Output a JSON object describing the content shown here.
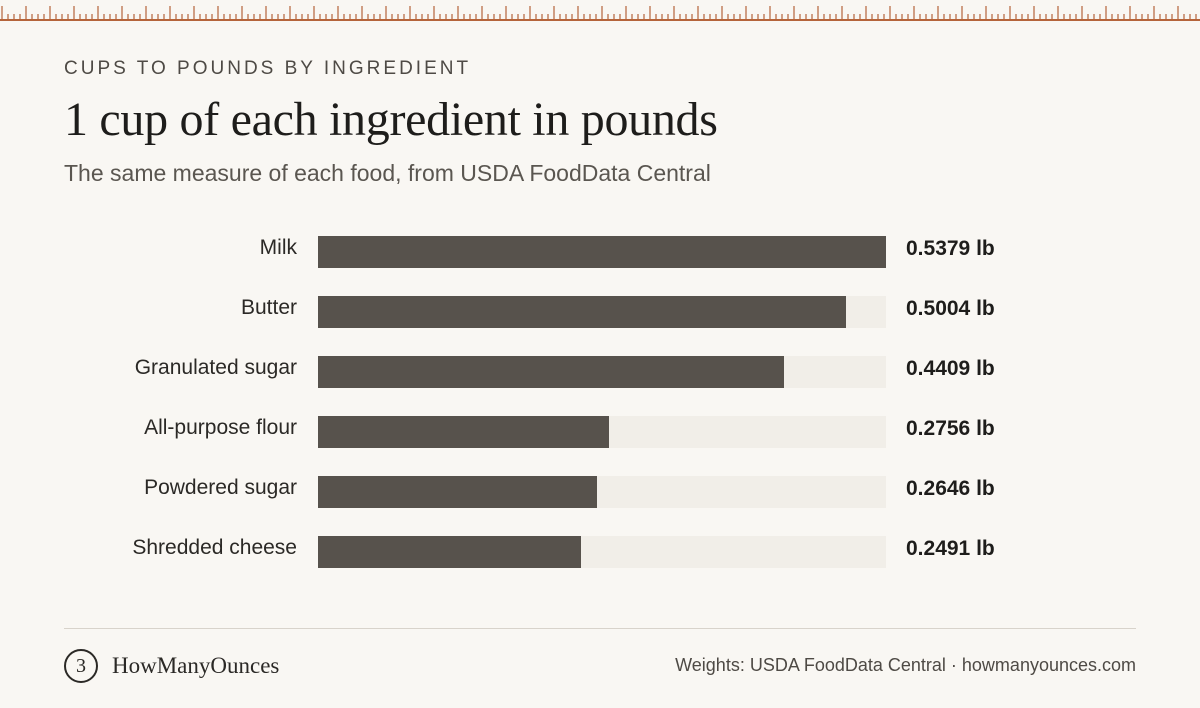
{
  "header": {
    "eyebrow": "CUPS TO POUNDS BY INGREDIENT",
    "title": "1 cup of each ingredient in pounds",
    "subtitle": "The same measure of each food, from USDA FoodData Central"
  },
  "chart_data": {
    "type": "bar",
    "orientation": "horizontal",
    "categories": [
      "Milk",
      "Butter",
      "Granulated sugar",
      "All-purpose flour",
      "Powdered sugar",
      "Shredded cheese"
    ],
    "values": [
      0.5379,
      0.5004,
      0.4409,
      0.2756,
      0.2646,
      0.2491
    ],
    "value_labels": [
      "0.5379 lb",
      "0.5004 lb",
      "0.4409 lb",
      "0.2756 lb",
      "0.2646 lb",
      "0.2491 lb"
    ],
    "unit": "lb",
    "xlim": [
      0,
      0.5379
    ],
    "grid": false,
    "legend": "none",
    "colors": {
      "bar": "#57524c",
      "track": "#f1eee8"
    }
  },
  "footer": {
    "logo_glyph": "3",
    "brand": "HowManyOunces",
    "credit": "Weights: USDA FoodData Central · howmanyounces.com"
  },
  "colors": {
    "ruler": "#b5643a",
    "background": "#f9f7f3"
  }
}
